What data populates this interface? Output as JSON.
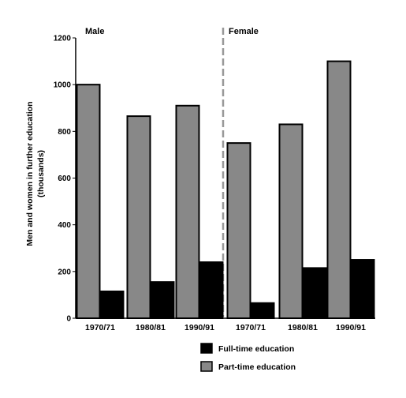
{
  "chart_data": {
    "type": "bar",
    "panels": [
      {
        "label": "Male",
        "categories": [
          "1970/71",
          "1980/81",
          "1990/91"
        ],
        "series": [
          {
            "name": "Part-time education",
            "values": [
              1000,
              865,
              910
            ]
          },
          {
            "name": "Full-time education",
            "values": [
              115,
              155,
              240
            ]
          }
        ]
      },
      {
        "label": "Female",
        "categories": [
          "1970/71",
          "1980/81",
          "1990/91"
        ],
        "series": [
          {
            "name": "Part-time education",
            "values": [
              750,
              830,
              1100
            ]
          },
          {
            "name": "Full-time education",
            "values": [
              65,
              215,
              250
            ]
          }
        ]
      }
    ],
    "ylabel_lines": [
      "Men and women in further education",
      "(thousands)"
    ],
    "ylim": [
      0,
      1200
    ],
    "yticks": [
      0,
      200,
      400,
      600,
      800,
      1000,
      1200
    ],
    "grid": false,
    "legend": {
      "placement": "bottom-center",
      "entries": [
        "Full-time education",
        "Part-time education"
      ]
    },
    "colors": {
      "Full-time education": "#000000",
      "Part-time education": "#888888",
      "divider": "#999999"
    }
  }
}
